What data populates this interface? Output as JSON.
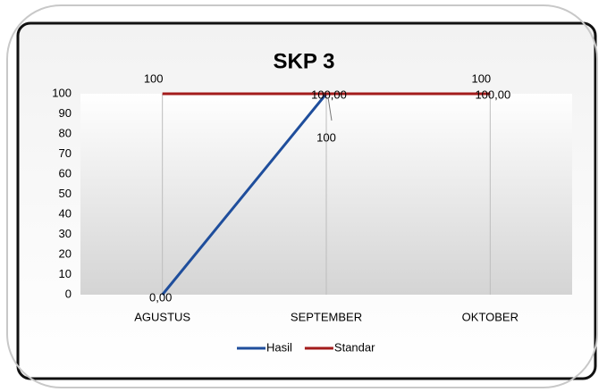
{
  "chart_data": {
    "type": "line",
    "title": "SKP 3",
    "categories": [
      "AGUSTUS",
      "SEPTEMBER",
      "OKTOBER"
    ],
    "series": [
      {
        "name": "Hasil",
        "color": "#1f4e9c",
        "values": [
          0,
          100,
          100
        ],
        "value_labels": [
          "0,00",
          "100,00",
          "100,00"
        ]
      },
      {
        "name": "Standar",
        "color": "#a31b1b",
        "values": [
          100,
          100,
          100
        ]
      }
    ],
    "ylim": [
      0,
      100
    ],
    "yticks": [
      0,
      10,
      20,
      30,
      40,
      50,
      60,
      70,
      80,
      90,
      100
    ],
    "grid": "vertical",
    "legend": "bottom"
  }
}
